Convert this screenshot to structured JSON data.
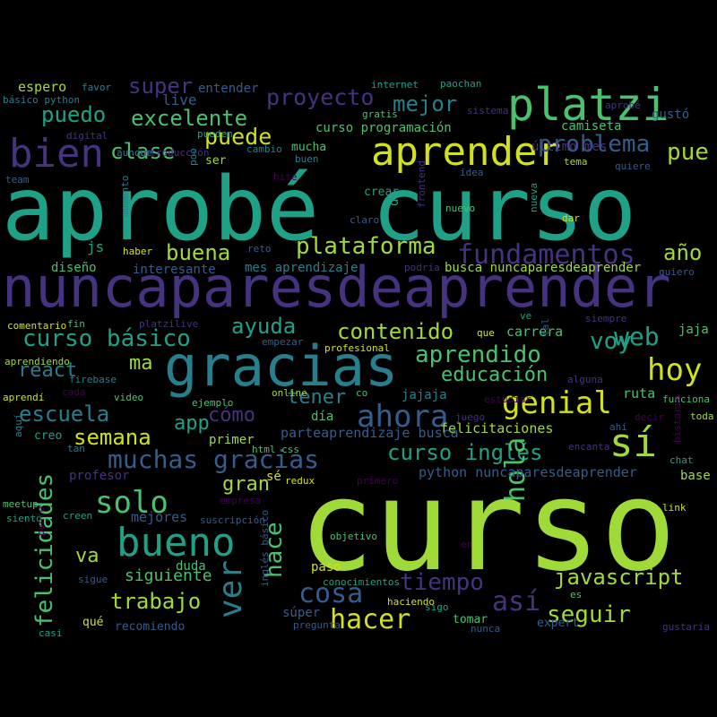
{
  "palette": {
    "background": "#000000",
    "yellow": "#d1e11c",
    "lime": "#a0da39",
    "green": "#4ac16d",
    "teal": "#1fa187",
    "cyan": "#277f8e",
    "blue": "#365c8d",
    "indigo": "#46327e",
    "purple": "#440154"
  },
  "words": [
    {
      "text": "aprobé curso",
      "color": "teal"
    },
    {
      "text": "curso",
      "color": "lime"
    },
    {
      "text": "nuncaparesdeaprender",
      "color": "indigo"
    },
    {
      "text": "gracias",
      "color": "cyan"
    },
    {
      "text": "platzi",
      "color": "green"
    },
    {
      "text": "aprender",
      "color": "yellow"
    },
    {
      "text": "bien",
      "color": "indigo"
    },
    {
      "text": "sí",
      "color": "lime"
    },
    {
      "text": "bueno",
      "color": "teal"
    },
    {
      "text": "hoy",
      "color": "yellow"
    },
    {
      "text": "ahora",
      "color": "blue"
    },
    {
      "text": "genial",
      "color": "yellow"
    },
    {
      "text": "fundamentos",
      "color": "indigo"
    },
    {
      "text": "proyecto",
      "color": "indigo"
    },
    {
      "text": "puede",
      "color": "yellow"
    },
    {
      "text": "solo",
      "color": "green"
    },
    {
      "text": "hacer",
      "color": "yellow"
    },
    {
      "text": "muchas gracias",
      "color": "blue"
    },
    {
      "text": "curso básico",
      "color": "teal"
    },
    {
      "text": "plataforma",
      "color": "lime"
    },
    {
      "text": "problema",
      "color": "blue"
    },
    {
      "text": "mejor",
      "color": "cyan"
    },
    {
      "text": "puedo",
      "color": "teal"
    },
    {
      "text": "excelente",
      "color": "green"
    },
    {
      "text": "super",
      "color": "indigo"
    },
    {
      "text": "clase",
      "color": "green"
    },
    {
      "text": "pue",
      "color": "lime"
    },
    {
      "text": "buena",
      "color": "lime"
    },
    {
      "text": "año",
      "color": "lime"
    },
    {
      "text": "contenido",
      "color": "lime"
    },
    {
      "text": "ayuda",
      "color": "teal"
    },
    {
      "text": "aprendido",
      "color": "green"
    },
    {
      "text": "voy",
      "color": "teal"
    },
    {
      "text": "web",
      "color": "teal"
    },
    {
      "text": "escuela",
      "color": "cyan"
    },
    {
      "text": "curso inglés",
      "color": "teal"
    },
    {
      "text": "cosa",
      "color": "blue"
    },
    {
      "text": "tiempo",
      "color": "indigo"
    },
    {
      "text": "javascript",
      "color": "lime"
    },
    {
      "text": "seguir",
      "color": "lime"
    },
    {
      "text": "así",
      "color": "indigo"
    },
    {
      "text": "trabajo",
      "color": "lime"
    },
    {
      "text": "semana",
      "color": "yellow"
    },
    {
      "text": "react",
      "color": "cyan"
    },
    {
      "text": "educación",
      "color": "green"
    },
    {
      "text": "tener",
      "color": "cyan"
    },
    {
      "text": "hola",
      "color": "green"
    },
    {
      "text": "ver",
      "color": "cyan"
    },
    {
      "text": "felicidades",
      "color": "green"
    },
    {
      "text": "hace",
      "color": "green"
    },
    {
      "text": "gran",
      "color": "lime"
    },
    {
      "text": "cómo",
      "color": "indigo"
    },
    {
      "text": "app",
      "color": "teal"
    },
    {
      "text": "va",
      "color": "lime"
    },
    {
      "text": "siguiente",
      "color": "green"
    },
    {
      "text": "ma",
      "color": "lime"
    },
    {
      "text": "mejores",
      "color": "blue"
    },
    {
      "text": "felicitaciones",
      "color": "lime"
    },
    {
      "text": "python nuncaparesdeaprender",
      "color": "blue"
    },
    {
      "text": "parteaprendizaje busca",
      "color": "blue"
    },
    {
      "text": "carrera",
      "color": "green"
    },
    {
      "text": "ruta",
      "color": "green"
    },
    {
      "text": "jajaja",
      "color": "cyan"
    },
    {
      "text": "día",
      "color": "green"
    },
    {
      "text": "primer",
      "color": "lime"
    },
    {
      "text": "sé",
      "color": "yellow"
    },
    {
      "text": "mes aprendizaje",
      "color": "cyan"
    },
    {
      "text": "busca nuncaparesdeaprender",
      "color": "lime"
    },
    {
      "text": "diseño",
      "color": "green"
    },
    {
      "text": "interesante",
      "color": "blue"
    },
    {
      "text": "js",
      "color": "teal"
    },
    {
      "text": "entender",
      "color": "blue"
    },
    {
      "text": "live",
      "color": "blue"
    },
    {
      "text": "espero",
      "color": "lime"
    },
    {
      "text": "favor",
      "color": "cyan"
    },
    {
      "text": "básico python",
      "color": "cyan"
    },
    {
      "text": "internet",
      "color": "teal"
    },
    {
      "text": "paochan",
      "color": "teal"
    },
    {
      "text": "aprobé",
      "color": "indigo"
    },
    {
      "text": "gustó",
      "color": "blue"
    },
    {
      "text": "camiseta",
      "color": "green"
    },
    {
      "text": "sistema",
      "color": "indigo"
    },
    {
      "text": "gratis",
      "color": "green"
    },
    {
      "text": "curso programación",
      "color": "green"
    },
    {
      "text": "mucha",
      "color": "green"
    },
    {
      "text": "buen",
      "color": "cyan"
    },
    {
      "text": "cambio",
      "color": "cyan"
    },
    {
      "text": "ser",
      "color": "lime"
    },
    {
      "text": "introducción",
      "color": "indigo"
    },
    {
      "text": "digital",
      "color": "indigo"
    },
    {
      "text": "pueden",
      "color": "teal"
    },
    {
      "text": "aunque",
      "color": "cyan"
    },
    {
      "text": "poo",
      "color": "cyan"
    },
    {
      "text": "team",
      "color": "blue"
    },
    {
      "text": "momento",
      "color": "cyan"
    },
    {
      "text": "último mes",
      "color": "indigo"
    },
    {
      "text": "idea",
      "color": "blue"
    },
    {
      "text": "tema",
      "color": "lime"
    },
    {
      "text": "quiere",
      "color": "blue"
    },
    {
      "text": "crear",
      "color": "teal"
    },
    {
      "text": "de",
      "color": "teal"
    },
    {
      "text": "nuevo",
      "color": "green"
    },
    {
      "text": "claro",
      "color": "blue"
    },
    {
      "text": "frontend",
      "color": "indigo"
    },
    {
      "text": "nueva",
      "color": "teal"
    },
    {
      "text": "dar",
      "color": "yellow"
    },
    {
      "text": "reto",
      "color": "blue"
    },
    {
      "text": "haber",
      "color": "yellow"
    },
    {
      "text": "podría",
      "color": "indigo"
    },
    {
      "text": "quiero",
      "color": "blue"
    },
    {
      "text": "hite",
      "color": "purple"
    },
    {
      "text": "fin",
      "color": "green"
    },
    {
      "text": "platzilive",
      "color": "indigo"
    },
    {
      "text": "comentario",
      "color": "yellow"
    },
    {
      "text": "ve",
      "color": "teal"
    },
    {
      "text": "siempre",
      "color": "indigo"
    },
    {
      "text": "jaja",
      "color": "green"
    },
    {
      "text": "que",
      "color": "yellow"
    },
    {
      "text": "tal",
      "color": "blue"
    },
    {
      "text": "empezar",
      "color": "blue"
    },
    {
      "text": "profesional",
      "color": "yellow"
    },
    {
      "text": "aprendiendo",
      "color": "lime"
    },
    {
      "text": "firebase",
      "color": "cyan"
    },
    {
      "text": "alguna",
      "color": "indigo"
    },
    {
      "text": "aprendí",
      "color": "yellow"
    },
    {
      "text": "cada",
      "color": "purple"
    },
    {
      "text": "video",
      "color": "green"
    },
    {
      "text": "ejemplo",
      "color": "green"
    },
    {
      "text": "online",
      "color": "lime"
    },
    {
      "text": "co",
      "color": "green"
    },
    {
      "text": "estudiar",
      "color": "purple"
    },
    {
      "text": "funciona",
      "color": "green"
    },
    {
      "text": "aquí",
      "color": "cyan"
    },
    {
      "text": "creo",
      "color": "teal"
    },
    {
      "text": "juego",
      "color": "indigo"
    },
    {
      "text": "ahí",
      "color": "blue"
    },
    {
      "text": "toda",
      "color": "lime"
    },
    {
      "text": "decir",
      "color": "purple"
    },
    {
      "text": "historia",
      "color": "purple"
    },
    {
      "text": "tan",
      "color": "cyan"
    },
    {
      "text": "html css",
      "color": "green"
    },
    {
      "text": "encanta",
      "color": "indigo"
    },
    {
      "text": "chat",
      "color": "teal"
    },
    {
      "text": "profesor",
      "color": "indigo"
    },
    {
      "text": "redux",
      "color": "yellow"
    },
    {
      "text": "primero",
      "color": "purple"
    },
    {
      "text": "meetup",
      "color": "green"
    },
    {
      "text": "empresa",
      "color": "purple"
    },
    {
      "text": "base",
      "color": "lime"
    },
    {
      "text": "siento",
      "color": "teal"
    },
    {
      "text": "creen",
      "color": "teal"
    },
    {
      "text": "suscripción",
      "color": "blue"
    },
    {
      "text": "link",
      "color": "yellow"
    },
    {
      "text": "punto",
      "color": "purple"
    },
    {
      "text": "objetivo",
      "color": "green"
    },
    {
      "text": "en",
      "color": "purple"
    },
    {
      "text": "inglés básico",
      "color": "blue"
    },
    {
      "text": "paso",
      "color": "yellow"
    },
    {
      "text": "sigue",
      "color": "blue"
    },
    {
      "text": "duda",
      "color": "green"
    },
    {
      "text": "conocimientos",
      "color": "teal"
    },
    {
      "text": "es",
      "color": "green"
    },
    {
      "text": "haciendo",
      "color": "yellow"
    },
    {
      "text": "qué",
      "color": "yellow"
    },
    {
      "text": "súper",
      "color": "blue"
    },
    {
      "text": "sigo",
      "color": "teal"
    },
    {
      "text": "tomar",
      "color": "green"
    },
    {
      "text": "expert",
      "color": "blue"
    },
    {
      "text": "gustaría",
      "color": "indigo"
    },
    {
      "text": "casi",
      "color": "teal"
    },
    {
      "text": "recomiendo",
      "color": "blue"
    },
    {
      "text": "pregunta",
      "color": "blue"
    },
    {
      "text": "nunca",
      "color": "blue"
    }
  ]
}
